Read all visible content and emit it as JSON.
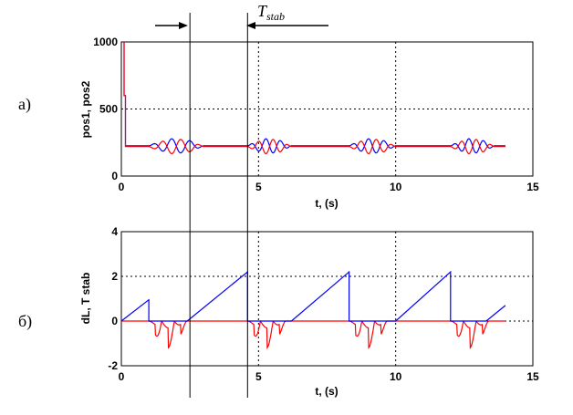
{
  "figure": {
    "marker_label": {
      "base": "T",
      "sub": "stab"
    },
    "marker_times": [
      2.5,
      4.6
    ]
  },
  "panels": [
    {
      "panel_label": "а)",
      "ylabel": "pos1, pos2",
      "xlabel": "t, (s)"
    },
    {
      "panel_label": "б)",
      "ylabel": "dL, T stab",
      "xlabel": "t, (s)"
    }
  ],
  "chart_data": [
    {
      "type": "line",
      "xlabel": "t, (s)",
      "ylabel": "pos1, pos2",
      "xlim": [
        0,
        15
      ],
      "ylim": [
        0,
        1000
      ],
      "xticks": [
        0,
        5,
        10,
        15
      ],
      "yticks": [
        0,
        500,
        1000
      ],
      "grid": true,
      "base_level": 220,
      "oscillation_windows": [
        [
          1.0,
          3.0
        ],
        [
          4.6,
          6.2
        ],
        [
          8.3,
          10.0
        ],
        [
          12.0,
          13.6
        ]
      ],
      "series": [
        {
          "color": "#0000ff",
          "points": [
            [
              0.1,
              1000
            ],
            [
              0.1,
              600
            ],
            [
              0.15,
              600
            ],
            [
              0.15,
              225
            ],
            [
              14,
              225
            ]
          ]
        },
        {
          "color": "#ff0000",
          "points": [
            [
              0.1,
              1000
            ],
            [
              0.1,
              600
            ],
            [
              0.15,
              600
            ],
            [
              0.15,
              220
            ],
            [
              14,
              220
            ]
          ]
        }
      ]
    },
    {
      "type": "line",
      "xlabel": "t, (s)",
      "ylabel": "dL, T stab",
      "xlim": [
        0,
        15
      ],
      "ylim": [
        -2,
        4
      ],
      "xticks": [
        0,
        5,
        10,
        15
      ],
      "yticks": [
        -2,
        0,
        2,
        4
      ],
      "grid": true,
      "series": [
        {
          "color": "#0000ff",
          "points": [
            [
              0,
              0
            ],
            [
              1.0,
              0.95
            ],
            [
              1.0,
              0
            ],
            [
              2.4,
              0
            ],
            [
              4.6,
              2.2
            ],
            [
              4.6,
              0
            ],
            [
              6.2,
              0
            ],
            [
              8.3,
              2.2
            ],
            [
              8.3,
              0
            ],
            [
              10.0,
              0
            ],
            [
              12.0,
              2.2
            ],
            [
              12.0,
              0
            ],
            [
              13.3,
              0
            ],
            [
              14,
              0.7
            ]
          ]
        },
        {
          "color": "#ff0000",
          "baseline": 0,
          "oscillation_windows": [
            [
              1.0,
              2.4
            ],
            [
              4.6,
              6.0
            ],
            [
              8.3,
              9.7
            ],
            [
              12.0,
              13.4
            ]
          ],
          "amplitude": 1.2
        }
      ]
    }
  ]
}
